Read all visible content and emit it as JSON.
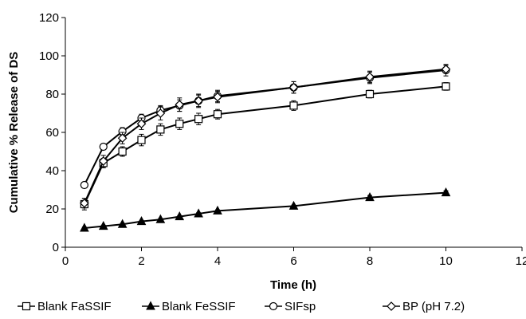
{
  "chart_data": {
    "type": "line",
    "xlabel": "Time (h)",
    "ylabel": "Cumulative % Release of DS",
    "xlim": [
      0,
      12
    ],
    "ylim": [
      0,
      120
    ],
    "xticks": [
      "0",
      "2",
      "4",
      "6",
      "8",
      "10",
      "12"
    ],
    "yticks": [
      "0",
      "20",
      "40",
      "60",
      "80",
      "100",
      "120"
    ],
    "grid": false,
    "legend_position": "bottom",
    "series": [
      {
        "name": "Blank FaSSIF",
        "marker": "open-square",
        "color": "#000000",
        "points": [
          [
            0.5,
            22.5
          ],
          [
            1,
            44
          ],
          [
            1.5,
            50
          ],
          [
            2,
            56
          ],
          [
            2.5,
            61.5
          ],
          [
            3,
            64.5
          ],
          [
            3.5,
            67
          ],
          [
            4,
            69.5
          ],
          [
            6,
            74
          ],
          [
            8,
            80
          ],
          [
            10,
            84
          ]
        ],
        "errors": [
          3,
          2.5,
          2.5,
          3,
          3,
          3,
          3,
          2.5,
          2.5,
          2,
          2
        ]
      },
      {
        "name": "Blank FeSSIF",
        "marker": "filled-triangle",
        "color": "#000000",
        "points": [
          [
            0.5,
            10
          ],
          [
            1,
            11
          ],
          [
            1.5,
            12
          ],
          [
            2,
            13.5
          ],
          [
            2.5,
            14.5
          ],
          [
            3,
            16
          ],
          [
            3.5,
            17.5
          ],
          [
            4,
            19
          ],
          [
            6,
            21.5
          ],
          [
            8,
            26
          ],
          [
            10,
            28.5
          ]
        ],
        "errors": [
          0.5,
          0.5,
          0.5,
          0.5,
          0.5,
          0.5,
          0.5,
          0.5,
          0.5,
          1,
          1
        ]
      },
      {
        "name": "SIFsp",
        "marker": "open-circle",
        "color": "#000000",
        "points": [
          [
            0.5,
            32.5
          ],
          [
            1,
            52.5
          ],
          [
            1.5,
            60.5
          ],
          [
            2,
            67.5
          ],
          [
            2.5,
            71.5
          ],
          [
            3,
            74
          ],
          [
            3.5,
            76.5
          ],
          [
            4,
            79
          ],
          [
            6,
            83.5
          ],
          [
            8,
            88.5
          ],
          [
            10,
            92.5
          ]
        ],
        "errors": [
          1,
          1.5,
          2,
          2,
          2.5,
          3,
          3,
          3,
          3,
          3,
          3
        ]
      },
      {
        "name": "BP (pH 7.2)",
        "marker": "open-diamond",
        "color": "#000000",
        "points": [
          [
            0.5,
            23
          ],
          [
            1,
            45
          ],
          [
            1.5,
            57
          ],
          [
            2,
            64.5
          ],
          [
            2.5,
            70
          ],
          [
            3,
            74.5
          ],
          [
            3.5,
            76.5
          ],
          [
            4,
            78.5
          ],
          [
            6,
            83.5
          ],
          [
            8,
            89
          ],
          [
            10,
            93
          ]
        ],
        "errors": [
          2.5,
          3,
          3,
          3,
          3.5,
          3.5,
          3.5,
          3,
          3,
          3,
          2
        ]
      }
    ]
  }
}
